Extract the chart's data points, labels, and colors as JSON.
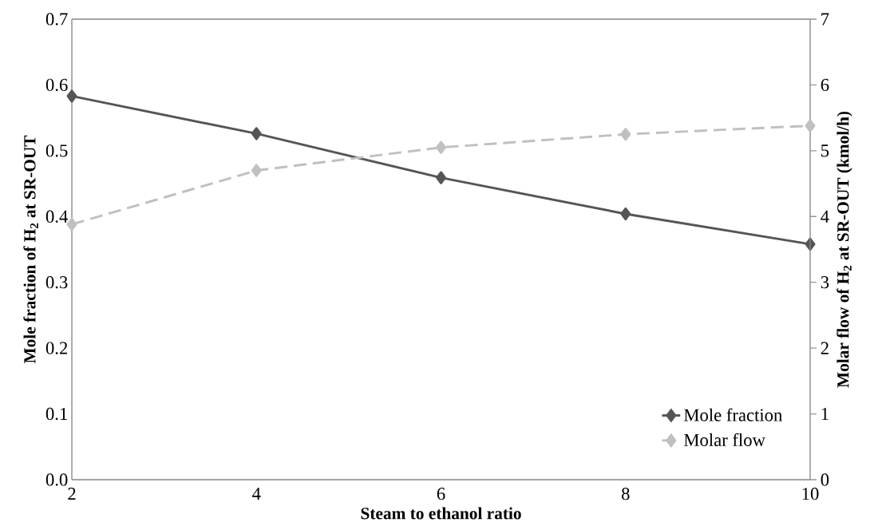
{
  "chart_data": {
    "type": "line",
    "xlabel": "Steam to ethanol ratio",
    "ylabel": "Mole fraction  of H$_{2}$ at SR-OUT",
    "y2label": "Molar flow of H$_{2}$ at SR-OUT (kmol/h)",
    "x": [
      2,
      4,
      6,
      8,
      10
    ],
    "series": [
      {
        "name": "Mole fraction",
        "color": "#555555",
        "values": [
          0.583,
          0.526,
          0.459,
          0.404,
          0.358
        ],
        "line_style": "solid"
      },
      {
        "name": "Molar flow",
        "color": "#c0c0c0",
        "values": [
          3.88,
          4.7,
          5.05,
          5.25,
          5.38
        ],
        "axis": "y2",
        "line_style": "dashed"
      }
    ],
    "xlim": [
      2,
      10
    ],
    "xticks": [
      2,
      4,
      6,
      8,
      10
    ],
    "ylim": [
      0,
      0.7
    ],
    "yticks": [
      {
        "value": 0,
        "label": "0.0"
      },
      0.1,
      0.2,
      0.3,
      0.4,
      0.5,
      0.6,
      0.7
    ],
    "y2lim": [
      0,
      7
    ],
    "y2ticks": [
      0,
      1,
      2,
      3,
      4,
      5,
      6,
      7
    ],
    "marker": "diamond",
    "legend": "bottom right",
    "grid": false
  }
}
